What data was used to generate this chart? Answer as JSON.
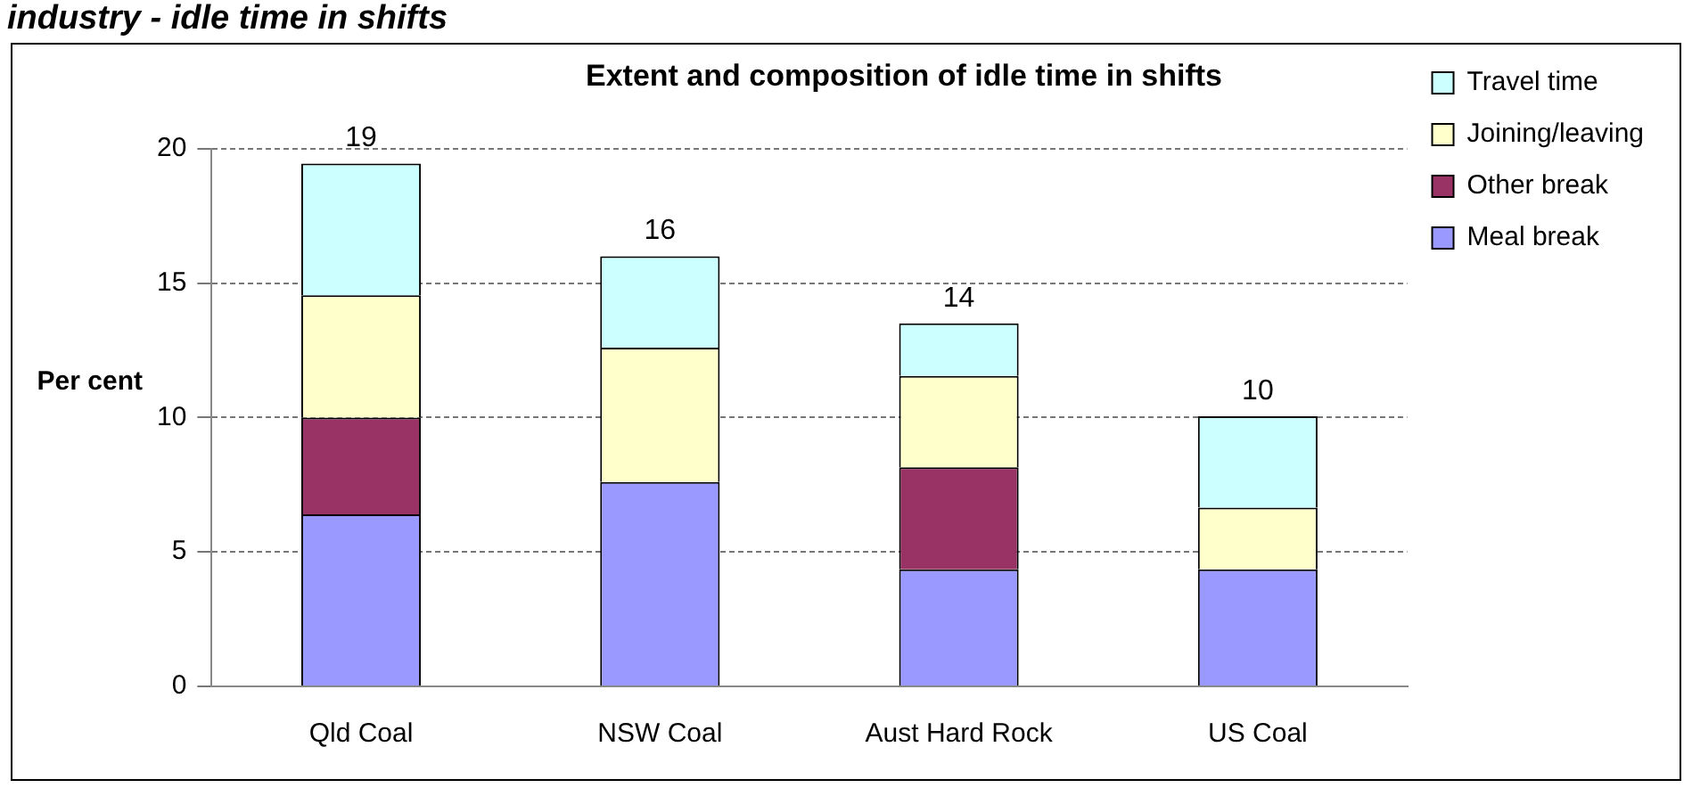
{
  "chart_data": {
    "type": "bar",
    "stacked": true,
    "title": "Extent and composition of idle time in shifts",
    "ylabel": "Per cent",
    "annotations": [
      "industry - idle time in shifts"
    ],
    "categories": [
      "Qld Coal",
      "NSW Coal",
      "Aust Hard Rock",
      "US Coal"
    ],
    "series": [
      {
        "name": "Meal break",
        "color": "#9999ff",
        "values": [
          6.4,
          7.6,
          4.35,
          4.35
        ]
      },
      {
        "name": "Other break",
        "color": "#993366",
        "values": [
          3.6,
          null,
          3.8,
          null
        ]
      },
      {
        "name": "Joining/leaving",
        "color": "#ffffcc",
        "values": [
          4.55,
          5.0,
          3.4,
          2.3
        ]
      },
      {
        "name": "Travel time",
        "color": "#ccffff",
        "values": [
          4.9,
          3.4,
          1.95,
          3.4
        ]
      }
    ],
    "totals": [
      "19",
      "16",
      "14",
      "10"
    ],
    "ylim": [
      0,
      20
    ],
    "yticks": [
      0,
      5,
      10,
      15,
      20
    ],
    "grid": "y",
    "legend": "top right"
  }
}
